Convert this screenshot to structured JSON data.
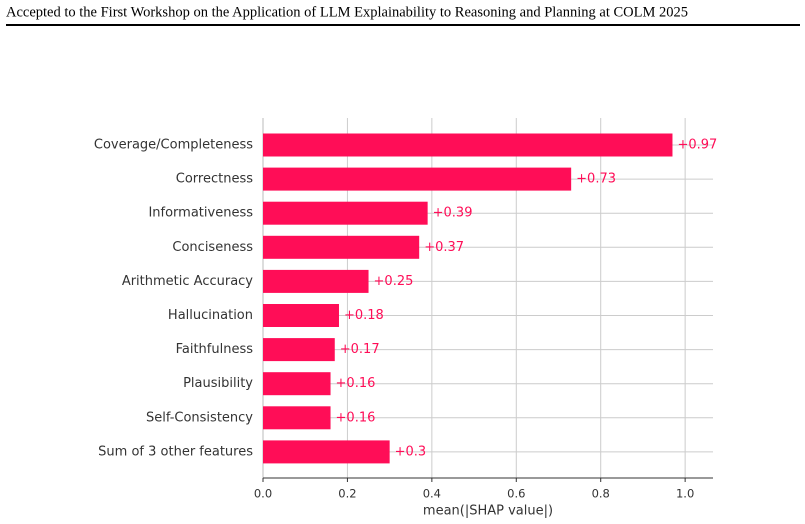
{
  "header": {
    "title": "Accepted to the First Workshop on the Application of LLM Explainability to Reasoning and Planning at COLM 2025"
  },
  "chart_data": {
    "type": "hbar",
    "xlabel": "mean(|SHAP value|)",
    "categories": [
      "Coverage/Completeness",
      "Correctness",
      "Informativeness",
      "Conciseness",
      "Arithmetic Accuracy",
      "Hallucination",
      "Faithfulness",
      "Plausibility",
      "Self-Consistency",
      "Sum of 3 other features"
    ],
    "values": [
      0.97,
      0.73,
      0.39,
      0.37,
      0.25,
      0.18,
      0.17,
      0.16,
      0.16,
      0.3
    ],
    "value_labels": [
      "+0.97",
      "+0.73",
      "+0.39",
      "+0.37",
      "+0.25",
      "+0.18",
      "+0.17",
      "+0.16",
      "+0.16",
      "+0.3"
    ],
    "color": "#ff0d57",
    "xlim": [
      0,
      1.066
    ],
    "xticks": [
      {
        "value": 0,
        "label": "0.0"
      },
      0.2,
      0.4,
      0.6,
      0.8,
      {
        "value": 1,
        "label": "1.0"
      }
    ],
    "grid": true
  }
}
